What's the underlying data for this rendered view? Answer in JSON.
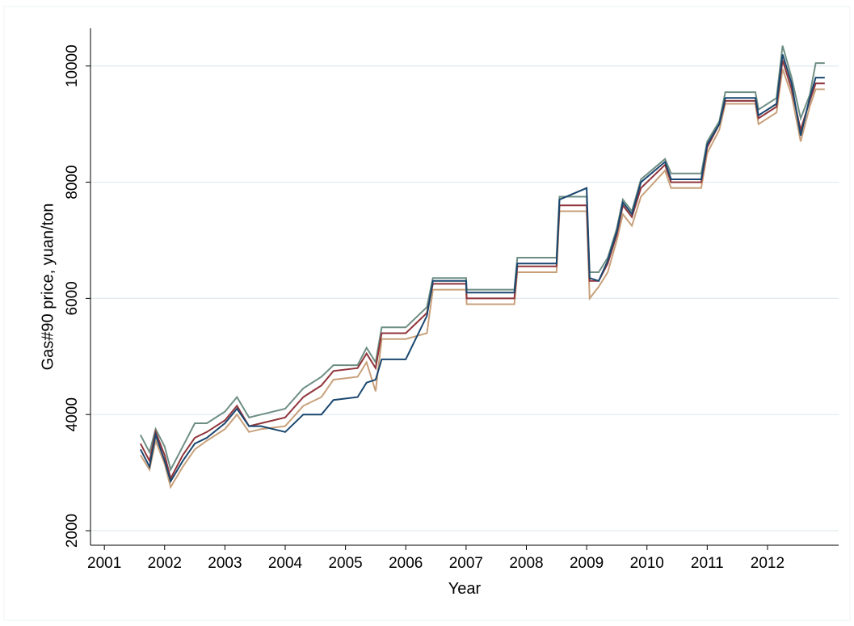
{
  "chart_data": {
    "type": "line",
    "x_label": "Year",
    "y_label": "Gas#90 price, yuan/ton",
    "x": [
      2001.6,
      2001.75,
      2001.85,
      2002.0,
      2002.1,
      2002.3,
      2002.5,
      2002.7,
      2003.0,
      2003.2,
      2003.4,
      2003.6,
      2004.0,
      2004.3,
      2004.6,
      2004.8,
      2005.2,
      2005.35,
      2005.5,
      2005.6,
      2006.0,
      2006.35,
      2006.45,
      2007.0,
      2007.01,
      2007.8,
      2007.85,
      2008.5,
      2008.55,
      2009.0,
      2009.05,
      2009.2,
      2009.35,
      2009.5,
      2009.6,
      2009.75,
      2009.9,
      2010.3,
      2010.4,
      2010.9,
      2011.0,
      2011.2,
      2011.3,
      2011.8,
      2011.85,
      2012.15,
      2012.25,
      2012.4,
      2012.55,
      2012.7,
      2012.8,
      2012.95
    ],
    "series": [
      {
        "color": "#6e8e84",
        "values": [
          3650,
          3350,
          3750,
          3450,
          3050,
          3450,
          3850,
          3850,
          4050,
          4300,
          3950,
          4000,
          4100,
          4450,
          4650,
          4850,
          4850,
          5150,
          4900,
          5500,
          5500,
          5850,
          6350,
          6350,
          6150,
          6150,
          6700,
          6700,
          7750,
          7750,
          6450,
          6450,
          6700,
          7200,
          7700,
          7500,
          8050,
          8400,
          8150,
          8150,
          8700,
          9050,
          9550,
          9550,
          9250,
          9450,
          10350,
          9800,
          9100,
          9500,
          10050,
          10050
        ]
      },
      {
        "color": "#c8a07a",
        "values": [
          3300,
          3050,
          3550,
          3150,
          2750,
          3100,
          3400,
          3550,
          3750,
          4000,
          3700,
          3750,
          3800,
          4150,
          4300,
          4600,
          4650,
          4900,
          4400,
          5300,
          5300,
          5400,
          6150,
          6150,
          5900,
          5900,
          6450,
          6450,
          7500,
          7500,
          6000,
          6200,
          6450,
          7000,
          7450,
          7250,
          7750,
          8200,
          7900,
          7900,
          8500,
          8900,
          9350,
          9350,
          9000,
          9200,
          9950,
          9500,
          8700,
          9300,
          9600,
          9600
        ]
      },
      {
        "color": "#90353b",
        "values": [
          3500,
          3200,
          3700,
          3300,
          2900,
          3300,
          3600,
          3700,
          3900,
          4150,
          3800,
          3850,
          3950,
          4300,
          4500,
          4750,
          4800,
          5050,
          4800,
          5400,
          5400,
          5750,
          6250,
          6250,
          6000,
          6000,
          6550,
          6550,
          7600,
          7600,
          6300,
          6300,
          6600,
          7100,
          7600,
          7400,
          7900,
          8300,
          8000,
          8000,
          8600,
          9000,
          9400,
          9400,
          9100,
          9300,
          10100,
          9600,
          8900,
          9400,
          9700,
          9700
        ]
      },
      {
        "color": "#1a476f",
        "values": [
          3400,
          3100,
          3650,
          3200,
          2850,
          3200,
          3500,
          3600,
          3850,
          4100,
          3800,
          3800,
          3700,
          4000,
          4000,
          4250,
          4300,
          4550,
          4600,
          4950,
          4950,
          5700,
          6300,
          6300,
          6100,
          6100,
          6600,
          6600,
          7700,
          7900,
          6350,
          6300,
          6650,
          7150,
          7650,
          7450,
          8000,
          8350,
          8050,
          8050,
          8650,
          9000,
          9450,
          9450,
          9150,
          9350,
          10200,
          9700,
          8800,
          9450,
          9800,
          9800
        ]
      }
    ],
    "xlim": [
      2000.77,
      2013.18
    ],
    "ylim": [
      1750,
      10650
    ],
    "xticks": [
      2001,
      2002,
      2003,
      2004,
      2005,
      2006,
      2007,
      2008,
      2009,
      2010,
      2011,
      2012
    ],
    "yticks": [
      2000,
      4000,
      6000,
      8000,
      10000
    ],
    "grid": true
  }
}
